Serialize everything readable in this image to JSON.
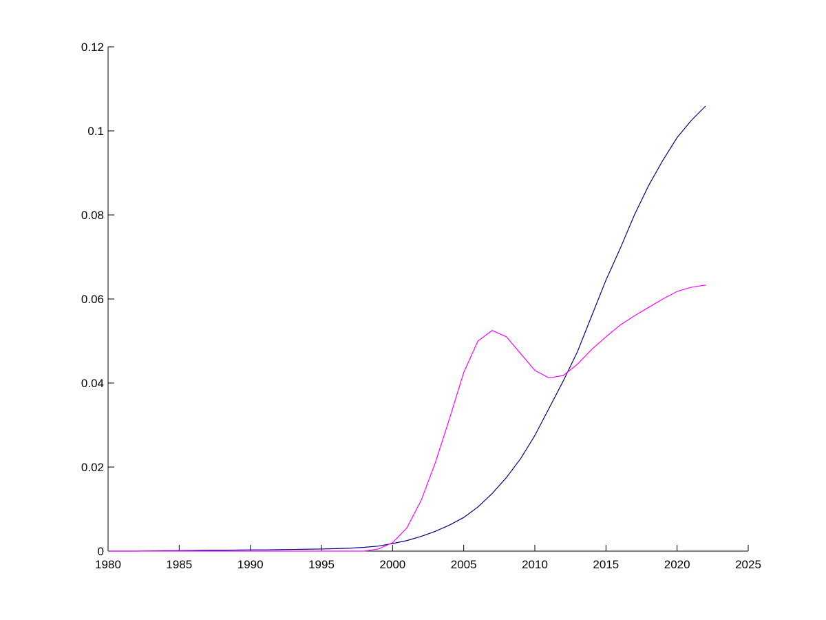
{
  "chart_data": {
    "type": "line",
    "x": [
      1980,
      1981,
      1982,
      1983,
      1984,
      1985,
      1986,
      1987,
      1988,
      1989,
      1990,
      1991,
      1992,
      1993,
      1994,
      1995,
      1996,
      1997,
      1998,
      1999,
      2000,
      2001,
      2002,
      2003,
      2004,
      2005,
      2006,
      2007,
      2008,
      2009,
      2010,
      2011,
      2012,
      2013,
      2014,
      2015,
      2016,
      2017,
      2018,
      2019,
      2020,
      2021,
      2022
    ],
    "series": [
      {
        "color": "#000080",
        "values": [
          0,
          0,
          0,
          5e-05,
          0.0001,
          0.0001,
          0.00015,
          0.0002,
          0.0002,
          0.00025,
          0.0003,
          0.0003,
          0.00035,
          0.0004,
          0.00045,
          0.0005,
          0.0006,
          0.0007,
          0.0009,
          0.0012,
          0.0018,
          0.0025,
          0.0035,
          0.0047,
          0.0062,
          0.008,
          0.0105,
          0.0137,
          0.0175,
          0.022,
          0.0275,
          0.034,
          0.0405,
          0.0475,
          0.056,
          0.0645,
          0.072,
          0.08,
          0.087,
          0.093,
          0.0984,
          0.1025,
          0.1059
        ]
      },
      {
        "color": "#ff00ff",
        "values": [
          0,
          0,
          0,
          0,
          0,
          0,
          0,
          0,
          0,
          0,
          0,
          0,
          0,
          0,
          0,
          0,
          0,
          0,
          0,
          0.0005,
          0.002,
          0.0055,
          0.012,
          0.021,
          0.0315,
          0.0425,
          0.05,
          0.0525,
          0.051,
          0.047,
          0.043,
          0.0412,
          0.0418,
          0.0445,
          0.048,
          0.051,
          0.0538,
          0.056,
          0.058,
          0.06,
          0.0618,
          0.0628,
          0.0633
        ]
      }
    ],
    "xlim": [
      1980,
      2025
    ],
    "xticks": [
      1980,
      1985,
      1990,
      1995,
      2000,
      2005,
      2010,
      2015,
      2020,
      2025
    ],
    "ylim": [
      0,
      0.12
    ],
    "yticks": [
      0,
      0.02,
      0.04,
      0.06,
      0.08,
      0.1,
      0.12
    ]
  }
}
